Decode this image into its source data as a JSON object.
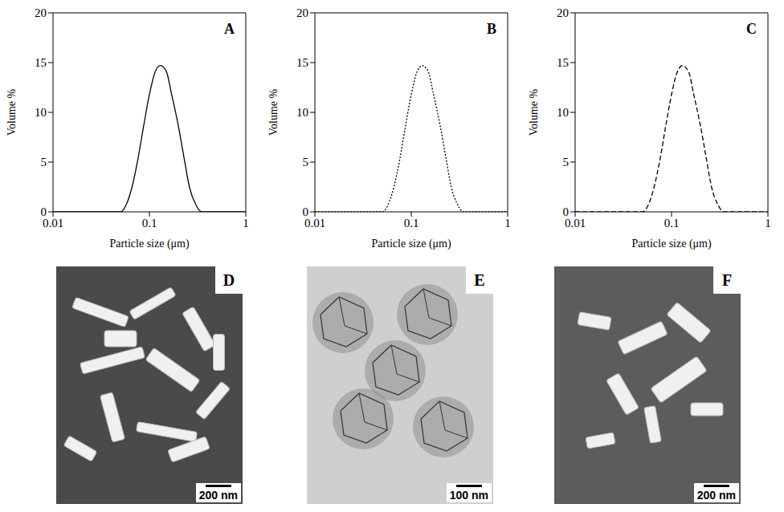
{
  "chart_data": [
    {
      "type": "line",
      "label": "A",
      "xlabel": "Particle size (μm)",
      "ylabel": "Volume %",
      "log": "x",
      "xlim": [
        0.01,
        1
      ],
      "xticks": [
        0.01,
        0.1,
        1
      ],
      "ylim": [
        0,
        20
      ],
      "yticks": [
        0,
        5,
        10,
        15,
        20
      ],
      "x": [
        0.01,
        0.05,
        0.058,
        0.066,
        0.076,
        0.087,
        0.1,
        0.115,
        0.13,
        0.15,
        0.17,
        0.2,
        0.23,
        0.26,
        0.3,
        0.35,
        1
      ],
      "values": [
        0,
        0,
        0.8,
        2.5,
        5.3,
        8.6,
        11.8,
        14.1,
        14.7,
        14.1,
        11.8,
        8.6,
        5.3,
        2.5,
        0.8,
        0,
        0
      ],
      "color": "#000000",
      "line_style": "solid"
    },
    {
      "type": "line",
      "label": "B",
      "xlabel": "Particle size (μm)",
      "ylabel": "Volume %",
      "log": "x",
      "xlim": [
        0.01,
        1
      ],
      "xticks": [
        0.01,
        0.1,
        1
      ],
      "ylim": [
        0,
        20
      ],
      "yticks": [
        0,
        5,
        10,
        15,
        20
      ],
      "x": [
        0.01,
        0.05,
        0.058,
        0.066,
        0.076,
        0.087,
        0.1,
        0.115,
        0.13,
        0.15,
        0.17,
        0.2,
        0.23,
        0.26,
        0.3,
        0.35,
        1
      ],
      "values": [
        0,
        0,
        0.8,
        2.5,
        5.3,
        8.6,
        11.8,
        14.1,
        14.7,
        14.1,
        11.8,
        8.6,
        5.3,
        2.5,
        0.8,
        0,
        0
      ],
      "color": "#000000",
      "line_style": "dotted"
    },
    {
      "type": "line",
      "label": "C",
      "xlabel": "Particle size (μm)",
      "ylabel": "Volume %",
      "log": "x",
      "xlim": [
        0.01,
        1
      ],
      "xticks": [
        0.01,
        0.1,
        1
      ],
      "ylim": [
        0,
        20
      ],
      "yticks": [
        0,
        5,
        10,
        15,
        20
      ],
      "x": [
        0.01,
        0.05,
        0.058,
        0.066,
        0.076,
        0.087,
        0.1,
        0.115,
        0.13,
        0.15,
        0.17,
        0.2,
        0.23,
        0.26,
        0.3,
        0.35,
        1
      ],
      "values": [
        0,
        0,
        0.8,
        2.5,
        5.3,
        8.6,
        11.8,
        14.1,
        14.7,
        14.1,
        11.8,
        8.6,
        5.3,
        2.5,
        0.8,
        0,
        0
      ],
      "color": "#000000",
      "line_style": "dashed"
    }
  ],
  "images": [
    {
      "label": "D",
      "scale_bar": "200 nm"
    },
    {
      "label": "E",
      "scale_bar": "100 nm"
    },
    {
      "label": "F",
      "scale_bar": "200 nm"
    }
  ]
}
